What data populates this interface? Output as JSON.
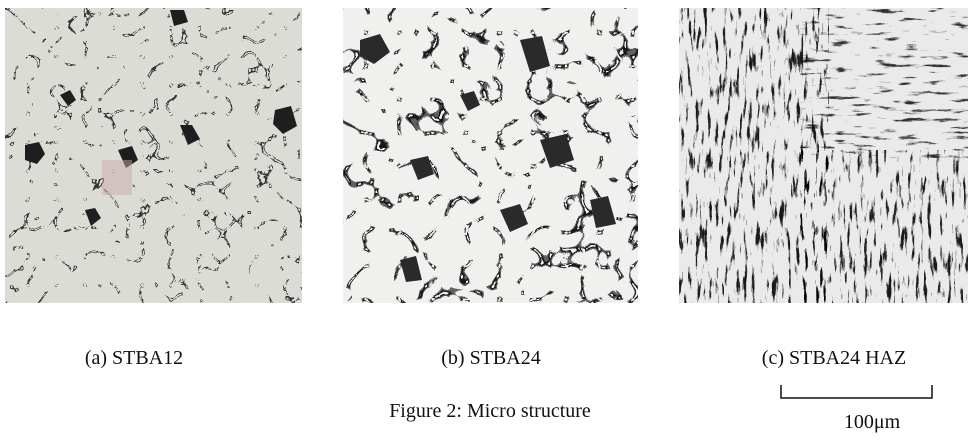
{
  "figure": {
    "panels": [
      {
        "label": "(a) STBA12"
      },
      {
        "label": "(b) STBA24"
      },
      {
        "label": "(c) STBA24 HAZ"
      }
    ],
    "caption": "Figure 2: Micro structure",
    "scale_bar": "100μm"
  }
}
